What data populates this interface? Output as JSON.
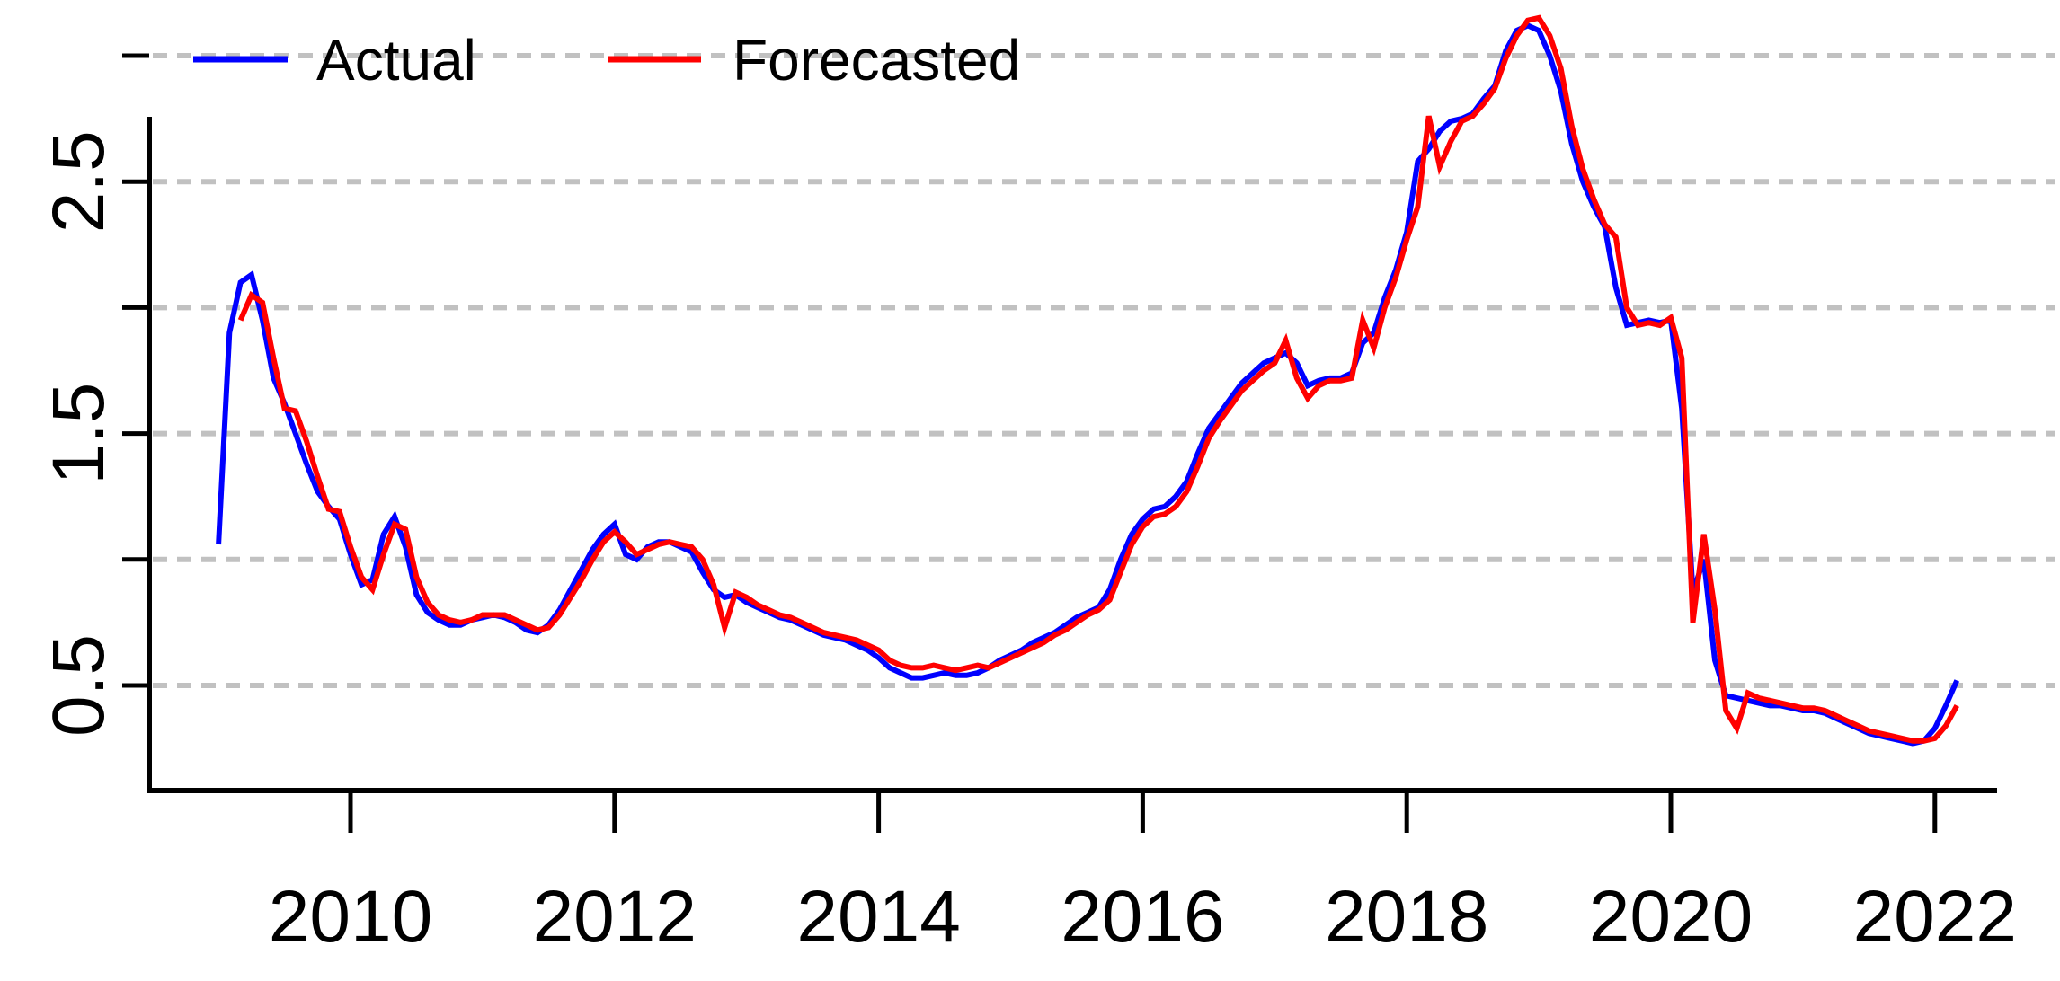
{
  "page": {
    "background_color": "#ffffff",
    "axis_color": "#000000",
    "grid_color": "#c1c1c1",
    "grid_style": "dashed"
  },
  "legend": {
    "entries": [
      {
        "label": "Actual",
        "color": "#0000ff",
        "symbol": "line"
      },
      {
        "label": "Forecasted",
        "color": "#ff0000",
        "symbol": "line"
      }
    ]
  },
  "chart_data": {
    "type": "line",
    "title": "",
    "xlabel": "",
    "ylabel": "",
    "grid": "horizontal-dashed",
    "legend_position": "top",
    "x_tick_values": [
      2010,
      2012,
      2014,
      2016,
      2018,
      2020,
      2022
    ],
    "x_tick_labels": [
      "2010",
      "2012",
      "2014",
      "2016",
      "2018",
      "2020",
      "2022"
    ],
    "y_gridline_values": [
      3.0,
      2.5,
      2.0,
      1.5,
      1.0,
      0.5
    ],
    "y_labeled_ticks": [
      {
        "value": 2.5,
        "label": "2.5"
      },
      {
        "value": 1.5,
        "label": "1.5"
      },
      {
        "value": 0.5,
        "label": "0.5"
      }
    ],
    "xlim": [
      2008.5,
      2022.45
    ],
    "ylim": [
      0.1,
      3.25
    ],
    "x_resolution": "monthly",
    "series": [
      {
        "name": "Actual",
        "color": "#0000ff",
        "start_year": 2009.0,
        "step_years": 0.083333,
        "values": [
          1.06,
          1.9,
          2.1,
          2.13,
          1.95,
          1.72,
          1.62,
          1.5,
          1.38,
          1.27,
          1.21,
          1.16,
          1.02,
          0.9,
          0.92,
          1.1,
          1.17,
          1.05,
          0.86,
          0.79,
          0.76,
          0.74,
          0.74,
          0.76,
          0.77,
          0.78,
          0.77,
          0.75,
          0.72,
          0.71,
          0.74,
          0.8,
          0.88,
          0.96,
          1.04,
          1.1,
          1.14,
          1.02,
          1.0,
          1.05,
          1.07,
          1.07,
          1.05,
          1.03,
          0.95,
          0.88,
          0.85,
          0.86,
          0.83,
          0.81,
          0.79,
          0.77,
          0.76,
          0.74,
          0.72,
          0.7,
          0.69,
          0.68,
          0.66,
          0.64,
          0.61,
          0.57,
          0.55,
          0.53,
          0.53,
          0.54,
          0.55,
          0.54,
          0.54,
          0.55,
          0.57,
          0.6,
          0.62,
          0.64,
          0.67,
          0.69,
          0.71,
          0.74,
          0.77,
          0.79,
          0.81,
          0.88,
          1.0,
          1.1,
          1.16,
          1.2,
          1.21,
          1.25,
          1.31,
          1.42,
          1.52,
          1.58,
          1.64,
          1.7,
          1.74,
          1.78,
          1.8,
          1.82,
          1.78,
          1.69,
          1.71,
          1.72,
          1.72,
          1.74,
          1.86,
          1.9,
          2.04,
          2.15,
          2.3,
          2.58,
          2.63,
          2.7,
          2.74,
          2.75,
          2.77,
          2.83,
          2.88,
          3.02,
          3.1,
          3.12,
          3.1,
          3.0,
          2.86,
          2.65,
          2.5,
          2.4,
          2.32,
          2.08,
          1.93,
          1.94,
          1.95,
          1.94,
          1.95,
          1.6,
          0.87,
          1.0,
          0.6,
          0.46,
          0.45,
          0.44,
          0.43,
          0.42,
          0.42,
          0.41,
          0.4,
          0.4,
          0.39,
          0.37,
          0.35,
          0.33,
          0.31,
          0.3,
          0.29,
          0.28,
          0.27,
          0.28,
          0.33,
          0.42,
          0.52
        ]
      },
      {
        "name": "Forecasted",
        "color": "#ff0000",
        "start_year": 2009.166667,
        "step_years": 0.083333,
        "values": [
          1.95,
          2.05,
          2.02,
          1.8,
          1.6,
          1.59,
          1.47,
          1.33,
          1.2,
          1.19,
          1.05,
          0.93,
          0.88,
          1.02,
          1.14,
          1.12,
          0.93,
          0.83,
          0.78,
          0.76,
          0.75,
          0.76,
          0.78,
          0.78,
          0.78,
          0.76,
          0.74,
          0.72,
          0.73,
          0.78,
          0.85,
          0.92,
          1.0,
          1.07,
          1.11,
          1.07,
          1.02,
          1.04,
          1.06,
          1.07,
          1.06,
          1.05,
          1.0,
          0.9,
          0.73,
          0.87,
          0.85,
          0.82,
          0.8,
          0.78,
          0.77,
          0.75,
          0.73,
          0.71,
          0.7,
          0.69,
          0.68,
          0.66,
          0.64,
          0.6,
          0.58,
          0.57,
          0.57,
          0.58,
          0.57,
          0.56,
          0.57,
          0.58,
          0.57,
          0.59,
          0.61,
          0.63,
          0.65,
          0.67,
          0.7,
          0.72,
          0.75,
          0.78,
          0.8,
          0.84,
          0.95,
          1.06,
          1.13,
          1.17,
          1.18,
          1.21,
          1.27,
          1.37,
          1.48,
          1.55,
          1.61,
          1.67,
          1.71,
          1.75,
          1.78,
          1.87,
          1.72,
          1.64,
          1.69,
          1.71,
          1.71,
          1.72,
          1.95,
          1.84,
          2.0,
          2.12,
          2.27,
          2.4,
          2.76,
          2.56,
          2.66,
          2.74,
          2.76,
          2.81,
          2.87,
          2.99,
          3.08,
          3.14,
          3.15,
          3.08,
          2.95,
          2.72,
          2.55,
          2.43,
          2.33,
          2.28,
          2.0,
          1.93,
          1.94,
          1.93,
          1.96,
          1.8,
          0.75,
          1.1,
          0.8,
          0.4,
          0.33,
          0.47,
          0.45,
          0.44,
          0.43,
          0.42,
          0.41,
          0.41,
          0.4,
          0.38,
          0.36,
          0.34,
          0.32,
          0.31,
          0.3,
          0.29,
          0.28,
          0.28,
          0.29,
          0.34,
          0.42
        ]
      }
    ]
  }
}
